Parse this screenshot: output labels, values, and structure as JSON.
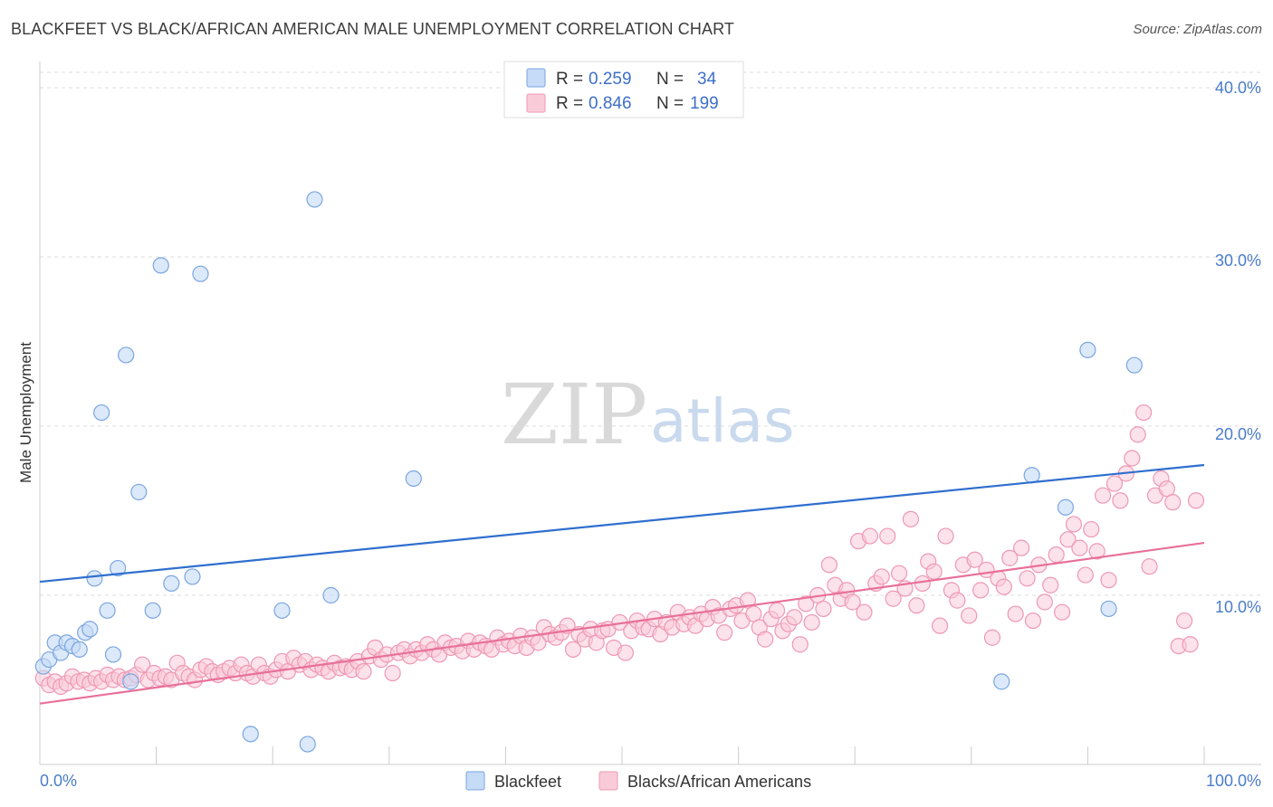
{
  "header": {
    "title": "BLACKFEET VS BLACK/AFRICAN AMERICAN MALE UNEMPLOYMENT CORRELATION CHART",
    "source": "Source: ZipAtlas.com"
  },
  "watermark": {
    "part1": "ZIP",
    "part2": "atlas"
  },
  "legend": {
    "rows": [
      {
        "r_label": "R =",
        "r_value": "0.259",
        "n_label": "N =",
        "n_value": "34",
        "color": "#a9c8f0"
      },
      {
        "r_label": "R =",
        "r_value": "0.846",
        "n_label": "N =",
        "n_value": "199",
        "color": "#f5b8cb"
      }
    ]
  },
  "colors": {
    "blackfeet_fill": "#c5dbf6",
    "blackfeet_stroke": "#7aa6e0",
    "blackfeet_line": "#2f6fcf",
    "black_fill": "#f9cbd9",
    "black_stroke": "#ee98b4",
    "black_line": "#e8709a",
    "grid": "#dddddd",
    "axis": "#cccccc",
    "tick_label": "#4a7cc9"
  },
  "chart_data": {
    "type": "scatter",
    "title": "BLACKFEET VS BLACK/AFRICAN AMERICAN MALE UNEMPLOYMENT CORRELATION CHART",
    "xlabel": "",
    "ylabel": "Male Unemployment",
    "xlim": [
      0,
      100
    ],
    "ylim": [
      0,
      40
    ],
    "x_tick_labels": [
      "0.0%",
      "100.0%"
    ],
    "y_ticks": [
      10,
      20,
      30,
      40
    ],
    "y_tick_labels": [
      "10.0%",
      "20.0%",
      "30.0%",
      "40.0%"
    ],
    "grid": true,
    "legend_position": "top-center",
    "bottom_legend": [
      "Blackfeet",
      "Blacks/African Americans"
    ],
    "series": [
      {
        "name": "Blackfeet",
        "r": 0.259,
        "n": 34,
        "trend": {
          "x": [
            0,
            100
          ],
          "y": [
            10.8,
            17.7
          ]
        },
        "points": [
          [
            0.3,
            5.8
          ],
          [
            0.8,
            6.2
          ],
          [
            1.3,
            7.2
          ],
          [
            1.8,
            6.6
          ],
          [
            2.3,
            7.2
          ],
          [
            2.8,
            7.0
          ],
          [
            3.4,
            6.8
          ],
          [
            3.9,
            7.8
          ],
          [
            4.3,
            8.0
          ],
          [
            4.7,
            11.0
          ],
          [
            5.3,
            20.8
          ],
          [
            5.8,
            9.1
          ],
          [
            6.3,
            6.5
          ],
          [
            6.7,
            11.6
          ],
          [
            7.4,
            24.2
          ],
          [
            7.8,
            4.9
          ],
          [
            8.5,
            16.1
          ],
          [
            9.7,
            9.1
          ],
          [
            10.4,
            29.5
          ],
          [
            11.3,
            10.7
          ],
          [
            13.1,
            11.1
          ],
          [
            13.8,
            29.0
          ],
          [
            18.1,
            1.8
          ],
          [
            20.8,
            9.1
          ],
          [
            23.0,
            1.2
          ],
          [
            23.6,
            33.4
          ],
          [
            25.0,
            10.0
          ],
          [
            32.1,
            16.9
          ],
          [
            82.6,
            4.9
          ],
          [
            85.2,
            17.1
          ],
          [
            88.1,
            15.2
          ],
          [
            90.0,
            24.5
          ],
          [
            94.0,
            23.6
          ],
          [
            91.8,
            9.2
          ]
        ]
      },
      {
        "name": "Blacks/African Americans",
        "r": 0.846,
        "n": 199,
        "trend": {
          "x": [
            0,
            100
          ],
          "y": [
            3.6,
            13.1
          ]
        },
        "points": [
          [
            0.3,
            5.1
          ],
          [
            0.8,
            4.7
          ],
          [
            1.3,
            4.9
          ],
          [
            1.8,
            4.6
          ],
          [
            2.3,
            4.8
          ],
          [
            2.8,
            5.2
          ],
          [
            3.3,
            4.9
          ],
          [
            3.8,
            5.0
          ],
          [
            4.3,
            4.8
          ],
          [
            4.8,
            5.1
          ],
          [
            5.3,
            4.9
          ],
          [
            5.8,
            5.3
          ],
          [
            6.3,
            5.0
          ],
          [
            6.8,
            5.2
          ],
          [
            7.3,
            5.0
          ],
          [
            7.8,
            5.1
          ],
          [
            8.3,
            5.3
          ],
          [
            8.8,
            5.9
          ],
          [
            9.3,
            5.0
          ],
          [
            9.8,
            5.4
          ],
          [
            10.3,
            5.1
          ],
          [
            10.8,
            5.2
          ],
          [
            11.3,
            5.0
          ],
          [
            11.8,
            6.0
          ],
          [
            12.3,
            5.4
          ],
          [
            12.8,
            5.2
          ],
          [
            13.3,
            5.0
          ],
          [
            13.8,
            5.6
          ],
          [
            14.3,
            5.8
          ],
          [
            14.8,
            5.5
          ],
          [
            15.3,
            5.3
          ],
          [
            15.8,
            5.5
          ],
          [
            16.3,
            5.7
          ],
          [
            16.8,
            5.4
          ],
          [
            17.3,
            5.9
          ],
          [
            17.8,
            5.4
          ],
          [
            18.3,
            5.2
          ],
          [
            18.8,
            5.9
          ],
          [
            19.3,
            5.4
          ],
          [
            19.8,
            5.2
          ],
          [
            20.3,
            5.6
          ],
          [
            20.8,
            6.1
          ],
          [
            21.3,
            5.5
          ],
          [
            21.8,
            6.3
          ],
          [
            22.3,
            5.9
          ],
          [
            22.8,
            6.1
          ],
          [
            23.3,
            5.6
          ],
          [
            23.8,
            5.9
          ],
          [
            24.3,
            5.7
          ],
          [
            24.8,
            5.5
          ],
          [
            25.3,
            6.0
          ],
          [
            25.8,
            5.7
          ],
          [
            26.3,
            5.8
          ],
          [
            26.8,
            5.6
          ],
          [
            27.3,
            6.1
          ],
          [
            27.8,
            5.5
          ],
          [
            28.3,
            6.4
          ],
          [
            28.8,
            6.9
          ],
          [
            29.3,
            6.2
          ],
          [
            29.8,
            6.5
          ],
          [
            30.3,
            5.4
          ],
          [
            30.8,
            6.6
          ],
          [
            31.3,
            6.8
          ],
          [
            31.8,
            6.4
          ],
          [
            32.3,
            6.8
          ],
          [
            32.8,
            6.6
          ],
          [
            33.3,
            7.1
          ],
          [
            33.8,
            6.8
          ],
          [
            34.3,
            6.5
          ],
          [
            34.8,
            7.2
          ],
          [
            35.3,
            6.9
          ],
          [
            35.8,
            7.0
          ],
          [
            36.3,
            6.7
          ],
          [
            36.8,
            7.3
          ],
          [
            37.3,
            6.8
          ],
          [
            37.8,
            7.2
          ],
          [
            38.3,
            7.0
          ],
          [
            38.8,
            6.8
          ],
          [
            39.3,
            7.5
          ],
          [
            39.8,
            7.1
          ],
          [
            40.3,
            7.3
          ],
          [
            40.8,
            7.0
          ],
          [
            41.3,
            7.6
          ],
          [
            41.8,
            6.9
          ],
          [
            42.3,
            7.5
          ],
          [
            42.8,
            7.2
          ],
          [
            43.3,
            8.1
          ],
          [
            43.8,
            7.7
          ],
          [
            44.3,
            7.5
          ],
          [
            44.8,
            7.8
          ],
          [
            45.3,
            8.2
          ],
          [
            45.8,
            6.8
          ],
          [
            46.3,
            7.7
          ],
          [
            46.8,
            7.4
          ],
          [
            47.3,
            8.0
          ],
          [
            47.8,
            7.2
          ],
          [
            48.3,
            7.9
          ],
          [
            48.8,
            8.0
          ],
          [
            49.3,
            6.9
          ],
          [
            49.8,
            8.4
          ],
          [
            50.3,
            6.6
          ],
          [
            50.8,
            7.9
          ],
          [
            51.3,
            8.5
          ],
          [
            51.8,
            8.1
          ],
          [
            52.3,
            8.0
          ],
          [
            52.8,
            8.6
          ],
          [
            53.3,
            7.7
          ],
          [
            53.8,
            8.4
          ],
          [
            54.3,
            8.1
          ],
          [
            54.8,
            9.0
          ],
          [
            55.3,
            8.3
          ],
          [
            55.8,
            8.7
          ],
          [
            56.3,
            8.2
          ],
          [
            56.8,
            8.9
          ],
          [
            57.3,
            8.6
          ],
          [
            57.8,
            9.3
          ],
          [
            58.3,
            8.8
          ],
          [
            58.8,
            7.8
          ],
          [
            59.3,
            9.2
          ],
          [
            59.8,
            9.4
          ],
          [
            60.3,
            8.5
          ],
          [
            60.8,
            9.7
          ],
          [
            61.3,
            8.9
          ],
          [
            61.8,
            8.1
          ],
          [
            62.3,
            7.4
          ],
          [
            62.8,
            8.6
          ],
          [
            63.3,
            9.1
          ],
          [
            63.8,
            7.9
          ],
          [
            64.3,
            8.3
          ],
          [
            64.8,
            8.7
          ],
          [
            65.3,
            7.1
          ],
          [
            65.8,
            9.5
          ],
          [
            66.3,
            8.4
          ],
          [
            66.8,
            10.0
          ],
          [
            67.3,
            9.2
          ],
          [
            67.8,
            11.8
          ],
          [
            68.3,
            10.6
          ],
          [
            68.8,
            9.8
          ],
          [
            69.3,
            10.3
          ],
          [
            69.8,
            9.6
          ],
          [
            70.3,
            13.2
          ],
          [
            70.8,
            9.0
          ],
          [
            71.3,
            13.5
          ],
          [
            71.8,
            10.7
          ],
          [
            72.3,
            11.1
          ],
          [
            72.8,
            13.5
          ],
          [
            73.3,
            9.8
          ],
          [
            73.8,
            11.3
          ],
          [
            74.3,
            10.4
          ],
          [
            74.8,
            14.5
          ],
          [
            75.3,
            9.4
          ],
          [
            75.8,
            10.7
          ],
          [
            76.3,
            12.0
          ],
          [
            76.8,
            11.4
          ],
          [
            77.3,
            8.2
          ],
          [
            77.8,
            13.5
          ],
          [
            78.3,
            10.3
          ],
          [
            78.8,
            9.7
          ],
          [
            79.3,
            11.8
          ],
          [
            79.8,
            8.8
          ],
          [
            80.3,
            12.1
          ],
          [
            80.8,
            10.3
          ],
          [
            81.3,
            11.5
          ],
          [
            81.8,
            7.5
          ],
          [
            82.3,
            11.0
          ],
          [
            82.8,
            10.5
          ],
          [
            83.3,
            12.2
          ],
          [
            83.8,
            8.9
          ],
          [
            84.3,
            12.8
          ],
          [
            84.8,
            11.0
          ],
          [
            85.3,
            8.5
          ],
          [
            85.8,
            11.8
          ],
          [
            86.3,
            9.6
          ],
          [
            86.8,
            10.6
          ],
          [
            87.3,
            12.4
          ],
          [
            87.8,
            9.0
          ],
          [
            88.3,
            13.3
          ],
          [
            88.8,
            14.2
          ],
          [
            89.3,
            12.8
          ],
          [
            89.8,
            11.2
          ],
          [
            90.3,
            13.9
          ],
          [
            90.8,
            12.6
          ],
          [
            91.3,
            15.9
          ],
          [
            91.8,
            10.9
          ],
          [
            92.3,
            16.6
          ],
          [
            92.8,
            15.6
          ],
          [
            93.3,
            17.2
          ],
          [
            93.8,
            18.1
          ],
          [
            94.3,
            19.5
          ],
          [
            94.8,
            20.8
          ],
          [
            95.3,
            11.7
          ],
          [
            95.8,
            15.9
          ],
          [
            96.3,
            16.9
          ],
          [
            96.8,
            16.3
          ],
          [
            97.3,
            15.5
          ],
          [
            97.8,
            7.0
          ],
          [
            98.3,
            8.5
          ],
          [
            98.8,
            7.1
          ],
          [
            99.3,
            15.6
          ]
        ]
      }
    ]
  }
}
